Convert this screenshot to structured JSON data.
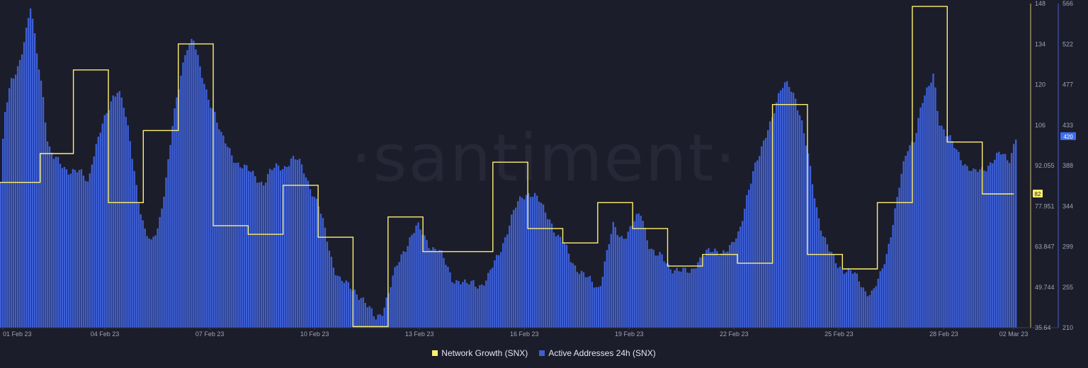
{
  "watermark": "·santiment·",
  "colors": {
    "background": "#1c1d2b",
    "network_growth": "#fff16e",
    "active_addresses": "#3d5fd6",
    "axis_text": "#9ea3b5",
    "tick_line": "#3a3d52"
  },
  "legend": [
    {
      "label": "Network Growth (SNX)",
      "color": "#fff16e"
    },
    {
      "label": "Active Addresses 24h (SNX)",
      "color": "#3d5fd6"
    }
  ],
  "chart_data": {
    "type": "bar",
    "grid": false,
    "x_ticks": [
      "01 Feb 23",
      "04 Feb 23",
      "07 Feb 23",
      "10 Feb 23",
      "13 Feb 23",
      "16 Feb 23",
      "19 Feb 23",
      "22 Feb 23",
      "25 Feb 23",
      "28 Feb 23",
      "02 Mar 23"
    ],
    "x_range_days": [
      0,
      29.1
    ],
    "y_left": {
      "series": "Network Growth (SNX)",
      "range": [
        35.64,
        148
      ],
      "ticks": [
        "148",
        "134",
        "120",
        "106",
        "92.055",
        "77.951",
        "63.847",
        "49.744",
        "35.64"
      ],
      "current_value": "82"
    },
    "y_right": {
      "series": "Active Addresses 24h (SNX)",
      "range": [
        210,
        566
      ],
      "ticks": [
        "566",
        "522",
        "477",
        "433",
        "388",
        "344",
        "299",
        "255",
        "210"
      ],
      "current_value": "420"
    },
    "series": [
      {
        "name": "Active Addresses 24h (SNX)",
        "type": "bar",
        "axis": "right",
        "points": [
          [
            0.0,
            370
          ],
          [
            0.1,
            440
          ],
          [
            0.3,
            480
          ],
          [
            0.5,
            500
          ],
          [
            0.7,
            530
          ],
          [
            0.85,
            560
          ],
          [
            1.0,
            520
          ],
          [
            1.2,
            470
          ],
          [
            1.35,
            410
          ],
          [
            1.5,
            395
          ],
          [
            1.7,
            390
          ],
          [
            2.0,
            383
          ],
          [
            2.2,
            380
          ],
          [
            2.4,
            375
          ],
          [
            2.5,
            370
          ],
          [
            2.6,
            395
          ],
          [
            2.8,
            420
          ],
          [
            3.0,
            440
          ],
          [
            3.2,
            465
          ],
          [
            3.35,
            475
          ],
          [
            3.5,
            455
          ],
          [
            3.7,
            410
          ],
          [
            3.9,
            360
          ],
          [
            4.1,
            320
          ],
          [
            4.3,
            300
          ],
          [
            4.5,
            320
          ],
          [
            4.7,
            370
          ],
          [
            4.9,
            430
          ],
          [
            5.1,
            475
          ],
          [
            5.3,
            520
          ],
          [
            5.5,
            530
          ],
          [
            5.7,
            490
          ],
          [
            5.9,
            465
          ],
          [
            6.1,
            450
          ],
          [
            6.3,
            420
          ],
          [
            6.5,
            405
          ],
          [
            6.7,
            395
          ],
          [
            6.9,
            388
          ],
          [
            7.1,
            380
          ],
          [
            7.3,
            375
          ],
          [
            7.5,
            370
          ],
          [
            7.7,
            380
          ],
          [
            7.9,
            386
          ],
          [
            8.1,
            388
          ],
          [
            8.3,
            395
          ],
          [
            8.5,
            392
          ],
          [
            8.7,
            380
          ],
          [
            8.9,
            360
          ],
          [
            9.1,
            340
          ],
          [
            9.3,
            310
          ],
          [
            9.5,
            280
          ],
          [
            9.7,
            262
          ],
          [
            9.9,
            255
          ],
          [
            10.1,
            252
          ],
          [
            10.3,
            245
          ],
          [
            10.5,
            230
          ],
          [
            10.7,
            220
          ],
          [
            10.9,
            230
          ],
          [
            11.1,
            250
          ],
          [
            11.3,
            275
          ],
          [
            11.5,
            295
          ],
          [
            11.7,
            310
          ],
          [
            11.9,
            320
          ],
          [
            12.1,
            310
          ],
          [
            12.3,
            300
          ],
          [
            12.5,
            295
          ],
          [
            12.7,
            280
          ],
          [
            12.9,
            265
          ],
          [
            13.1,
            262
          ],
          [
            13.3,
            255
          ],
          [
            13.5,
            260
          ],
          [
            13.7,
            258
          ],
          [
            13.9,
            262
          ],
          [
            14.1,
            280
          ],
          [
            14.3,
            300
          ],
          [
            14.5,
            320
          ],
          [
            14.7,
            340
          ],
          [
            14.9,
            355
          ],
          [
            15.1,
            360
          ],
          [
            15.3,
            352
          ],
          [
            15.5,
            340
          ],
          [
            15.7,
            330
          ],
          [
            15.9,
            310
          ],
          [
            16.1,
            300
          ],
          [
            16.3,
            285
          ],
          [
            16.5,
            275
          ],
          [
            16.7,
            265
          ],
          [
            16.9,
            258
          ],
          [
            17.1,
            255
          ],
          [
            17.3,
            290
          ],
          [
            17.5,
            320
          ],
          [
            17.7,
            310
          ],
          [
            17.9,
            315
          ],
          [
            18.1,
            325
          ],
          [
            18.3,
            335
          ],
          [
            18.5,
            305
          ],
          [
            18.7,
            290
          ],
          [
            18.9,
            285
          ],
          [
            19.1,
            278
          ],
          [
            19.3,
            275
          ],
          [
            19.5,
            270
          ],
          [
            19.7,
            270
          ],
          [
            19.9,
            285
          ],
          [
            20.1,
            290
          ],
          [
            20.3,
            292
          ],
          [
            20.5,
            296
          ],
          [
            20.7,
            295
          ],
          [
            20.9,
            298
          ],
          [
            21.1,
            315
          ],
          [
            21.3,
            355
          ],
          [
            21.5,
            380
          ],
          [
            21.7,
            400
          ],
          [
            21.9,
            430
          ],
          [
            22.1,
            450
          ],
          [
            22.3,
            470
          ],
          [
            22.5,
            480
          ],
          [
            22.7,
            465
          ],
          [
            22.9,
            430
          ],
          [
            23.1,
            390
          ],
          [
            23.3,
            345
          ],
          [
            23.5,
            310
          ],
          [
            23.7,
            290
          ],
          [
            23.9,
            280
          ],
          [
            24.1,
            275
          ],
          [
            24.3,
            270
          ],
          [
            24.5,
            262
          ],
          [
            24.7,
            252
          ],
          [
            24.9,
            248
          ],
          [
            25.1,
            262
          ],
          [
            25.3,
            290
          ],
          [
            25.5,
            330
          ],
          [
            25.7,
            370
          ],
          [
            25.9,
            405
          ],
          [
            26.1,
            420
          ],
          [
            26.3,
            455
          ],
          [
            26.5,
            470
          ],
          [
            26.65,
            490
          ],
          [
            26.8,
            440
          ],
          [
            27.0,
            422
          ],
          [
            27.2,
            410
          ],
          [
            27.4,
            400
          ],
          [
            27.6,
            388
          ],
          [
            27.8,
            378
          ],
          [
            28.0,
            383
          ],
          [
            28.2,
            390
          ],
          [
            28.4,
            395
          ],
          [
            28.6,
            400
          ],
          [
            28.8,
            395
          ],
          [
            29.0,
            420
          ]
        ]
      },
      {
        "name": "Network Growth (SNX)",
        "type": "step",
        "axis": "left",
        "steps": [
          [
            0.0,
            86
          ],
          [
            1.15,
            96
          ],
          [
            2.1,
            125
          ],
          [
            3.1,
            79
          ],
          [
            4.1,
            104
          ],
          [
            5.1,
            134
          ],
          [
            6.1,
            71
          ],
          [
            7.1,
            68
          ],
          [
            8.1,
            85
          ],
          [
            9.1,
            67
          ],
          [
            10.1,
            36
          ],
          [
            11.1,
            74
          ],
          [
            12.1,
            62
          ],
          [
            14.1,
            93
          ],
          [
            15.1,
            70
          ],
          [
            16.1,
            65
          ],
          [
            17.1,
            79
          ],
          [
            18.1,
            70
          ],
          [
            19.1,
            57
          ],
          [
            20.1,
            61
          ],
          [
            21.1,
            58
          ],
          [
            22.1,
            113
          ],
          [
            23.1,
            61
          ],
          [
            24.1,
            56
          ],
          [
            25.1,
            79
          ],
          [
            26.1,
            147
          ],
          [
            27.1,
            100
          ],
          [
            28.1,
            82
          ],
          [
            29.0,
            82
          ]
        ]
      }
    ]
  }
}
